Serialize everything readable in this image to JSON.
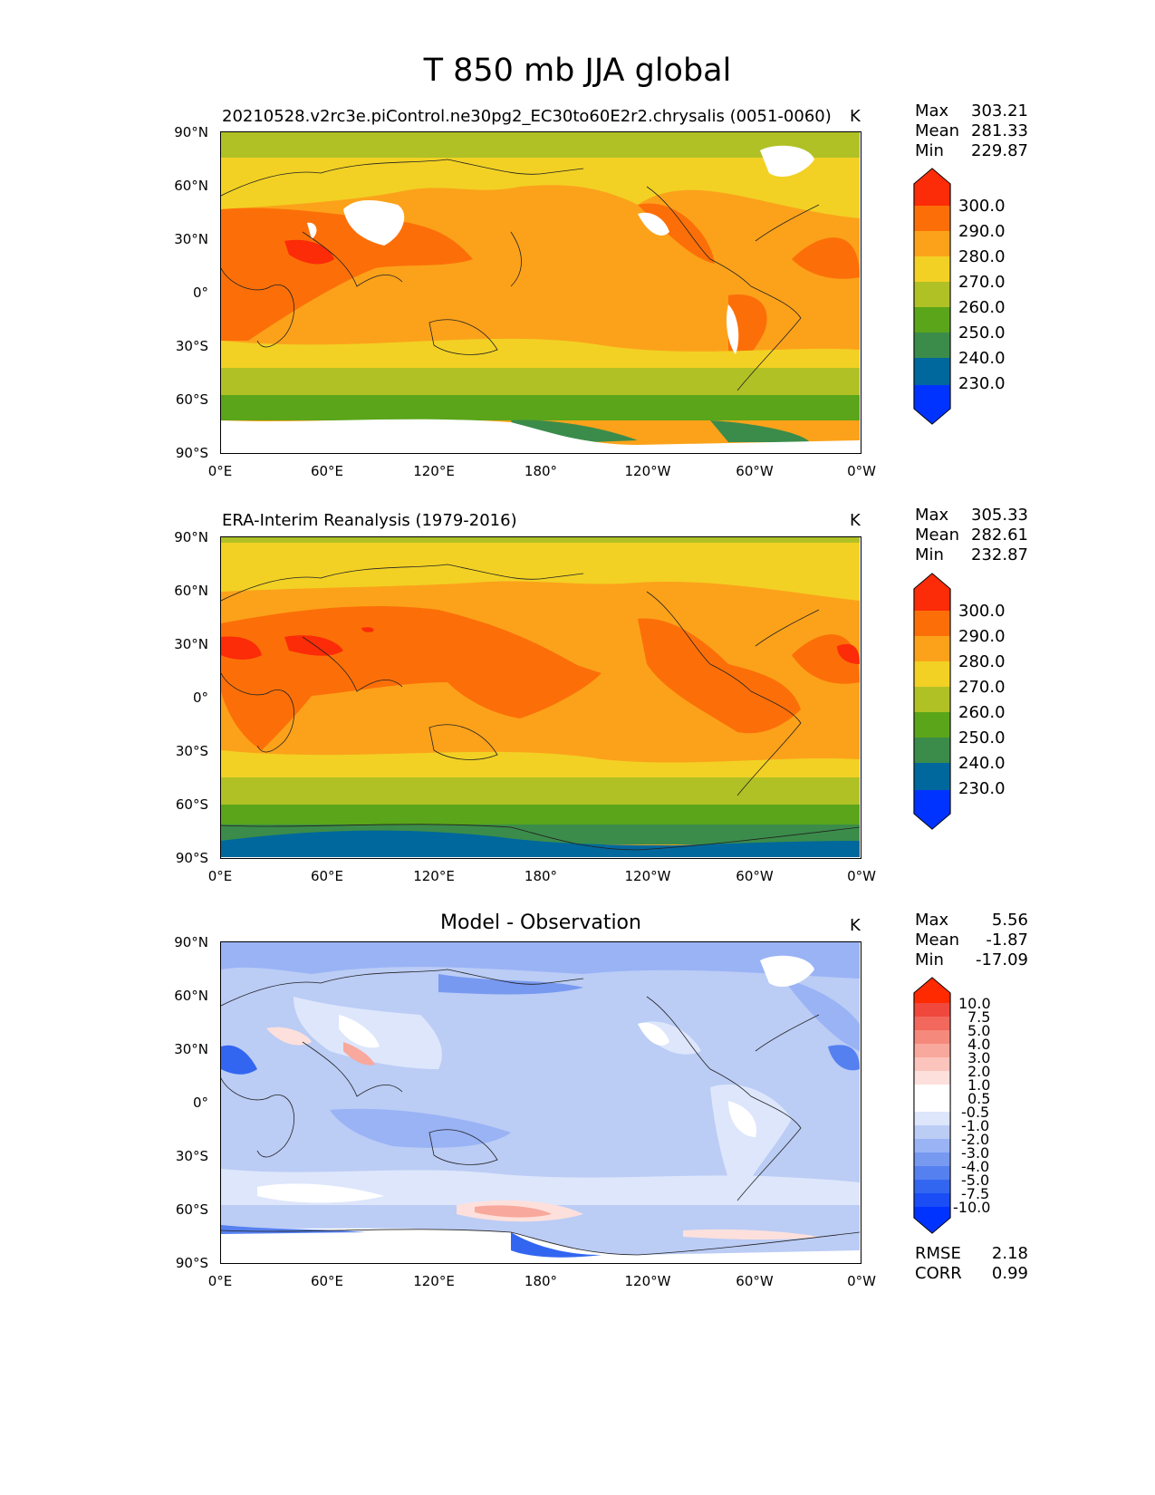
{
  "figure": {
    "title": "T 850 mb JJA global"
  },
  "panels": [
    {
      "title": "20210528.v2rc3e.piControl.ne30pg2_EC30to60E2r2.chrysalis (0051-0060)",
      "units": "K",
      "stats": [
        {
          "label": "Max",
          "value": "303.21"
        },
        {
          "label": "Mean",
          "value": "281.33"
        },
        {
          "label": "Min",
          "value": "229.87"
        }
      ],
      "colorbar": {
        "labels": [
          "300.0",
          "290.0",
          "280.0",
          "270.0",
          "260.0",
          "250.0",
          "240.0",
          "230.0"
        ]
      }
    },
    {
      "title": "ERA-Interim Reanalysis (1979-2016)",
      "units": "K",
      "stats": [
        {
          "label": "Max",
          "value": "305.33"
        },
        {
          "label": "Mean",
          "value": "282.61"
        },
        {
          "label": "Min",
          "value": "232.87"
        }
      ],
      "colorbar": {
        "labels": [
          "300.0",
          "290.0",
          "280.0",
          "270.0",
          "260.0",
          "250.0",
          "240.0",
          "230.0"
        ]
      }
    },
    {
      "title": "Model - Observation",
      "units": "K",
      "stats": [
        {
          "label": "Max",
          "value": "5.56"
        },
        {
          "label": "Mean",
          "value": "-1.87"
        },
        {
          "label": "Min",
          "value": "-17.09"
        }
      ],
      "colorbar": {
        "labels": [
          "10.0",
          "7.5",
          "5.0",
          "4.0",
          "3.0",
          "2.0",
          "1.0",
          "0.5",
          "-0.5",
          "-1.0",
          "-2.0",
          "-3.0",
          "-4.0",
          "-5.0",
          "-7.5",
          "-10.0"
        ]
      },
      "metrics": [
        {
          "label": "RMSE",
          "value": "2.18"
        },
        {
          "label": "CORR",
          "value": "0.99"
        }
      ]
    }
  ],
  "axes": {
    "yticks": [
      "90°N",
      "60°N",
      "30°N",
      "0°",
      "30°S",
      "60°S",
      "90°S"
    ],
    "xticks": [
      "0°E",
      "60°E",
      "120°E",
      "180°",
      "120°W",
      "60°W",
      "0°W"
    ]
  },
  "colors": {
    "abs_scale": [
      "#0033ff",
      "#00689c",
      "#3b8c4a",
      "#5aa51a",
      "#b0c125",
      "#f2d124",
      "#fca21a",
      "#fc6f08",
      "#fc2b08"
    ],
    "diff_scale": [
      "#0033ff",
      "#3366f0",
      "#5580f0",
      "#7799f0",
      "#99b3f5",
      "#bbccf5",
      "#dde6fb",
      "#ffffff",
      "#fde0dc",
      "#fbc4bc",
      "#f8a89c",
      "#f5897c",
      "#f2685c",
      "#f0483c",
      "#ff2a00"
    ]
  }
}
